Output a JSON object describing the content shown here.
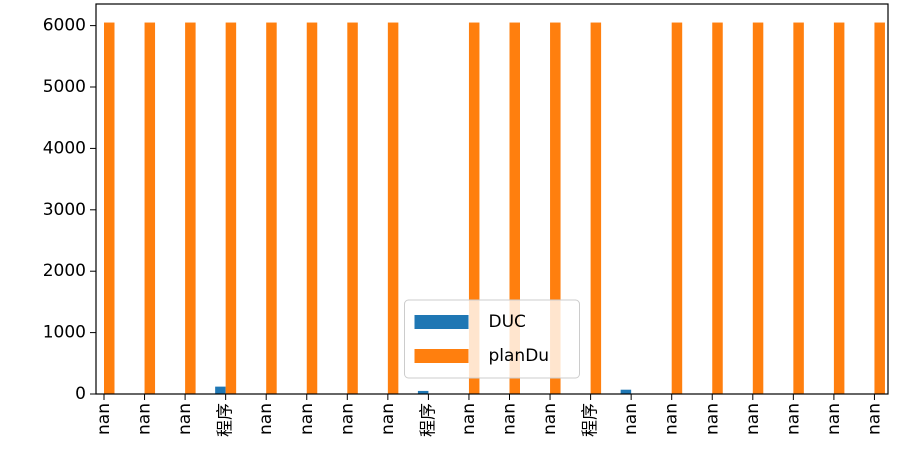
{
  "chart_data": {
    "type": "bar",
    "categories": [
      "nan",
      "nan",
      "nan",
      "程序",
      "nan",
      "nan",
      "nan",
      "nan",
      "程序",
      "nan",
      "nan",
      "nan",
      "程序",
      "nan",
      "nan",
      "nan",
      "nan",
      "nan",
      "nan",
      "nan"
    ],
    "series": [
      {
        "name": "DUC",
        "color": "#1f77b4",
        "values": [
          null,
          null,
          null,
          120,
          null,
          null,
          null,
          null,
          50,
          null,
          null,
          null,
          null,
          70,
          null,
          null,
          null,
          null,
          null,
          null
        ]
      },
      {
        "name": "planDu",
        "color": "#ff7f0e",
        "values": [
          6050,
          6050,
          6050,
          6050,
          6050,
          6050,
          6050,
          6050,
          null,
          6050,
          6050,
          6050,
          6050,
          null,
          6050,
          6050,
          6050,
          6050,
          6050,
          6050
        ]
      }
    ],
    "ylim": [
      0,
      6352
    ],
    "yticks": [
      0,
      1000,
      2000,
      3000,
      4000,
      5000,
      6000
    ],
    "legend": "lower center",
    "grid": false
  }
}
